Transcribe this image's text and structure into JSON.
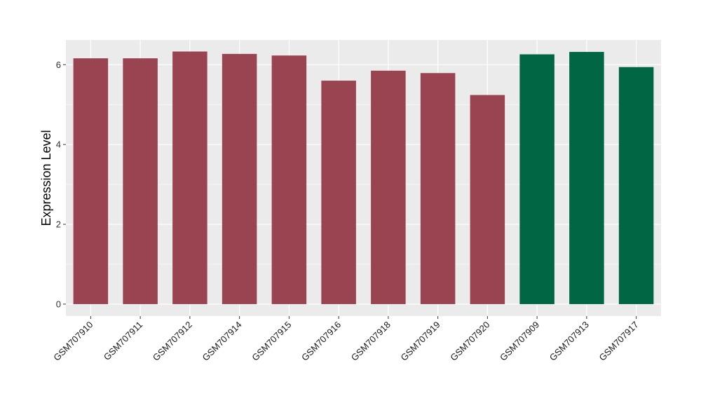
{
  "chart_data": {
    "type": "bar",
    "title": "",
    "xlabel": "",
    "ylabel": "Expression Level",
    "categories": [
      "GSM707910",
      "GSM707911",
      "GSM707912",
      "GSM707914",
      "GSM707915",
      "GSM707916",
      "GSM707918",
      "GSM707919",
      "GSM707920",
      "GSM707909",
      "GSM707913",
      "GSM707917"
    ],
    "values": [
      6.16,
      6.16,
      6.33,
      6.27,
      6.23,
      5.6,
      5.85,
      5.79,
      5.24,
      6.26,
      6.32,
      5.94
    ],
    "bar_colors": [
      "#9A4351",
      "#9A4351",
      "#9A4351",
      "#9A4351",
      "#9A4351",
      "#9A4351",
      "#9A4351",
      "#9A4351",
      "#9A4351",
      "#006644",
      "#006644",
      "#006644"
    ],
    "ylim": [
      -0.3,
      6.62
    ],
    "yticks": [
      0,
      2,
      4,
      6
    ],
    "ytick_labels": [
      "0",
      "2",
      "4",
      "6"
    ],
    "grid": true,
    "panel_background": "#EBEBEB",
    "grid_color": "#FFFFFF"
  }
}
